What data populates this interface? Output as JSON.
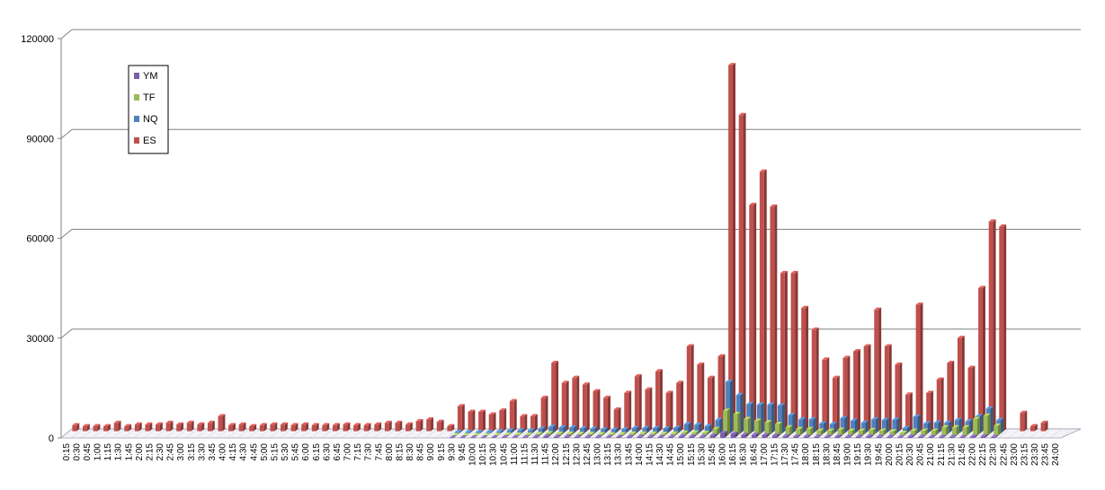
{
  "chart_data": {
    "type": "bar",
    "title": "",
    "xlabel": "",
    "ylabel": "",
    "ylim": [
      0,
      120000
    ],
    "yticks": [
      0,
      30000,
      60000,
      90000,
      120000
    ],
    "grid": true,
    "legend_position": "top-left",
    "categories": [
      "0:15",
      "0:30",
      "0:45",
      "1:00",
      "1:15",
      "1:30",
      "1:45",
      "2:00",
      "2:15",
      "2:30",
      "2:45",
      "3:00",
      "3:15",
      "3:30",
      "3:45",
      "4:00",
      "4:15",
      "4:30",
      "4:45",
      "5:00",
      "5:15",
      "5:30",
      "5:45",
      "6:00",
      "6:15",
      "6:30",
      "6:45",
      "7:00",
      "7:15",
      "7:30",
      "7:45",
      "8:00",
      "8:15",
      "8:30",
      "8:45",
      "9:00",
      "9:15",
      "9:30",
      "9:45",
      "10:00",
      "10:15",
      "10:30",
      "10:45",
      "11:00",
      "11:15",
      "11:30",
      "11:45",
      "12:00",
      "12:15",
      "12:30",
      "12:45",
      "13:00",
      "13:15",
      "13:30",
      "13:45",
      "14:00",
      "14:15",
      "14:30",
      "14:45",
      "15:00",
      "15:15",
      "15:30",
      "15:45",
      "16:00",
      "16:15",
      "16:30",
      "16:45",
      "17:00",
      "17:15",
      "17:30",
      "17:45",
      "18:00",
      "18:15",
      "18:30",
      "18:45",
      "19:00",
      "19:15",
      "19:30",
      "19:45",
      "20:00",
      "20:15",
      "20:30",
      "20:45",
      "21:00",
      "21:15",
      "21:30",
      "21:45",
      "22:00",
      "22:15",
      "22:30",
      "22:45",
      "23:00",
      "23:15",
      "23:30",
      "23:45",
      "24:00"
    ],
    "series": [
      {
        "name": "YM",
        "color": "#7B5EA7",
        "values": [
          0,
          0,
          0,
          0,
          0,
          0,
          0,
          0,
          0,
          0,
          0,
          0,
          0,
          0,
          0,
          0,
          0,
          0,
          0,
          0,
          0,
          0,
          0,
          0,
          0,
          0,
          0,
          0,
          0,
          0,
          0,
          0,
          0,
          0,
          0,
          0,
          0,
          100,
          100,
          100,
          100,
          150,
          200,
          200,
          200,
          300,
          400,
          300,
          350,
          300,
          300,
          250,
          200,
          250,
          300,
          300,
          300,
          250,
          300,
          400,
          400,
          350,
          700,
          1500,
          1200,
          900,
          900,
          800,
          700,
          500,
          400,
          400,
          300,
          350,
          400,
          350,
          350,
          400,
          350,
          300,
          200,
          400,
          300,
          300,
          300,
          300,
          250,
          400,
          500,
          300,
          0,
          0,
          0,
          0,
          0,
          0
        ]
      },
      {
        "name": "TF",
        "color": "#9BBB59",
        "values": [
          0,
          0,
          0,
          0,
          0,
          0,
          0,
          0,
          0,
          0,
          0,
          0,
          0,
          0,
          0,
          0,
          0,
          0,
          0,
          0,
          0,
          0,
          0,
          0,
          0,
          0,
          0,
          0,
          0,
          0,
          0,
          0,
          0,
          0,
          0,
          0,
          0,
          150,
          150,
          150,
          150,
          200,
          300,
          300,
          300,
          500,
          700,
          600,
          600,
          500,
          500,
          450,
          400,
          450,
          600,
          600,
          600,
          500,
          600,
          900,
          900,
          800,
          2000,
          7500,
          6500,
          5000,
          4500,
          4000,
          3500,
          2500,
          2000,
          2000,
          1500,
          1500,
          1800,
          1500,
          1500,
          1700,
          1500,
          1300,
          800,
          1500,
          1500,
          1500,
          2500,
          2500,
          2500,
          5000,
          6000,
          3000,
          0,
          0,
          0,
          0,
          0,
          0
        ]
      },
      {
        "name": "NQ",
        "color": "#4F81BD",
        "values": [
          0,
          0,
          0,
          0,
          0,
          0,
          0,
          0,
          0,
          0,
          0,
          0,
          0,
          0,
          0,
          0,
          0,
          0,
          0,
          0,
          0,
          0,
          0,
          0,
          0,
          0,
          0,
          0,
          0,
          0,
          0,
          0,
          0,
          0,
          0,
          0,
          0,
          400,
          400,
          400,
          400,
          600,
          900,
          900,
          900,
          1400,
          2000,
          1800,
          1800,
          1500,
          1400,
          1200,
          1100,
          1200,
          1600,
          1600,
          1600,
          1500,
          1700,
          2800,
          2600,
          2200,
          4000,
          15500,
          11500,
          8800,
          8600,
          8600,
          8400,
          5500,
          4200,
          4200,
          3000,
          2800,
          4600,
          3800,
          3200,
          4200,
          4000,
          4100,
          1600,
          5000,
          3000,
          3200,
          3200,
          4000,
          3600,
          5200,
          7500,
          4000,
          0,
          0,
          0,
          0,
          0,
          0
        ]
      },
      {
        "name": "ES",
        "color": "#C0504D",
        "values": [
          1800,
          1500,
          1500,
          1500,
          2500,
          1500,
          2000,
          2000,
          2000,
          2500,
          2000,
          2500,
          2000,
          2500,
          4500,
          1800,
          2000,
          1500,
          1800,
          2000,
          2000,
          1800,
          2000,
          1800,
          1800,
          1800,
          2000,
          1800,
          1800,
          2000,
          2500,
          2500,
          2000,
          3000,
          3500,
          2800,
          1500,
          7500,
          5800,
          5800,
          5000,
          6200,
          9000,
          4500,
          4500,
          10000,
          20500,
          14500,
          16000,
          14000,
          12000,
          10000,
          6500,
          11500,
          16500,
          12500,
          18000,
          11500,
          14500,
          25500,
          20000,
          16000,
          22500,
          110000,
          95000,
          68000,
          78000,
          67500,
          47500,
          47500,
          37000,
          30500,
          21500,
          16000,
          22000,
          24000,
          25500,
          36500,
          25500,
          20000,
          11000,
          38000,
          11500,
          15500,
          20500,
          28000,
          19000,
          43000,
          63000,
          61500,
          0,
          5500,
          1500,
          2500,
          0,
          0
        ]
      }
    ]
  }
}
